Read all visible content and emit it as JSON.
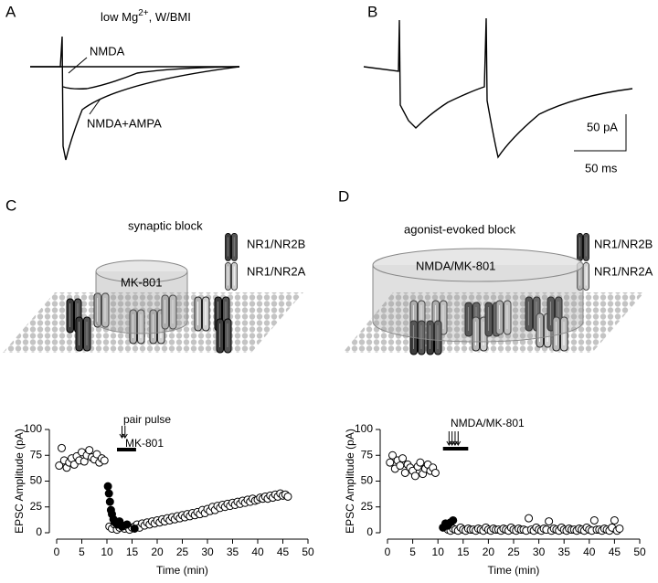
{
  "panel_a": {
    "label": "A",
    "title": "low Mg",
    "title_sup": "2+",
    "title_rest": ", W/BMI",
    "trace_1": "NMDA",
    "trace_2": "NMDA+AMPA"
  },
  "panel_b": {
    "label": "B",
    "scale_y": "50 pA",
    "scale_x": "50 ms"
  },
  "panel_c": {
    "label": "C",
    "title": "synaptic block",
    "legend_1": "NR1/NR2B",
    "legend_2": "NR1/NR2A",
    "cylinder": "MK-801"
  },
  "panel_d": {
    "label": "D",
    "title": "agonist-evoked block",
    "legend_1": "NR1/NR2B",
    "legend_2": "NR1/NR2A",
    "cylinder": "NMDA/MK-801"
  },
  "chart_data": [
    {
      "type": "scatter",
      "xlabel": "Time (min)",
      "ylabel": "EPSC Amplitude (pA)",
      "xlim": [
        0,
        50
      ],
      "ylim": [
        0,
        100
      ],
      "xticks": [
        0,
        5,
        10,
        15,
        20,
        25,
        30,
        35,
        40,
        45,
        50
      ],
      "yticks": [
        0,
        25,
        50,
        75,
        100
      ],
      "annotations": [
        "pair pulse",
        "MK-801"
      ],
      "series": [
        {
          "color": "#000000",
          "filled": false,
          "x": [
            0.5,
            1,
            1.5,
            2,
            2.5,
            3,
            3.5,
            4,
            4.5,
            5,
            5.5,
            6,
            6.5,
            7,
            7.5,
            8,
            8.5,
            9,
            9.5,
            10.5,
            11,
            11.5,
            12,
            12.5,
            13,
            13.5,
            14,
            14.5,
            15,
            15.5,
            16,
            16.5,
            17,
            17.5,
            18,
            18.5,
            19,
            19.5,
            20,
            20.5,
            21,
            21.5,
            22,
            22.5,
            23,
            23.5,
            24,
            24.5,
            25,
            25.5,
            26,
            26.5,
            27,
            27.5,
            28,
            28.5,
            29,
            29.5,
            30,
            30.5,
            31,
            31.5,
            32,
            32.5,
            33,
            33.5,
            34,
            34.5,
            35,
            35.5,
            36,
            36.5,
            37,
            37.5,
            38,
            38.5,
            39,
            39.5,
            40,
            40.5,
            41,
            41.5,
            42,
            42.5,
            43,
            43.5,
            44,
            44.5,
            45,
            45.5,
            46
          ],
          "values": [
            65,
            82,
            70,
            63,
            68,
            72,
            66,
            74,
            70,
            78,
            69,
            75,
            80,
            73,
            71,
            76,
            68,
            72,
            70,
            6,
            4,
            8,
            3,
            5,
            7,
            4,
            6,
            3,
            5,
            6,
            8,
            5,
            9,
            7,
            10,
            8,
            11,
            9,
            12,
            10,
            13,
            11,
            14,
            12,
            15,
            13,
            16,
            14,
            17,
            15,
            18,
            16,
            19,
            17,
            20,
            18,
            22,
            19,
            23,
            21,
            25,
            22,
            26,
            24,
            27,
            25,
            28,
            26,
            29,
            27,
            30,
            28,
            31,
            29,
            32,
            30,
            33,
            31,
            32,
            34,
            33,
            35,
            33,
            36,
            34,
            37,
            35,
            38,
            36,
            37,
            35
          ]
        },
        {
          "color": "#000000",
          "filled": true,
          "x": [
            10.2,
            10.4,
            10.6,
            10.8,
            11,
            11.3,
            11.6,
            12,
            12.5,
            13,
            14,
            15.5
          ],
          "values": [
            45,
            38,
            30,
            22,
            18,
            13,
            10,
            8,
            11,
            6,
            8,
            4
          ]
        }
      ]
    },
    {
      "type": "scatter",
      "xlabel": "Time (min)",
      "ylabel": "EPSC Amplitude (pA)",
      "xlim": [
        0,
        50
      ],
      "ylim": [
        0,
        100
      ],
      "xticks": [
        0,
        5,
        10,
        15,
        20,
        25,
        30,
        35,
        40,
        45,
        50
      ],
      "yticks": [
        0,
        25,
        50,
        75,
        100
      ],
      "annotations": [
        "NMDA/MK-801"
      ],
      "series": [
        {
          "color": "#000000",
          "filled": false,
          "x": [
            0.5,
            1,
            1.5,
            2,
            2.5,
            3,
            3.5,
            4,
            4.5,
            5,
            5.5,
            6,
            6.5,
            7,
            7.5,
            8,
            8.5,
            9,
            9.5,
            12,
            12.5,
            13,
            13.5,
            14,
            14.5,
            15,
            15.5,
            16,
            16.5,
            17,
            17.5,
            18,
            18.5,
            19,
            19.5,
            20,
            20.5,
            21,
            21.5,
            22,
            22.5,
            23,
            23.5,
            24,
            24.5,
            25,
            25.5,
            26,
            26.5,
            27,
            27.5,
            28,
            28.5,
            29,
            29.5,
            30,
            30.5,
            31,
            31.5,
            32,
            32.5,
            33,
            33.5,
            34,
            34.5,
            35,
            35.5,
            36,
            36.5,
            37,
            37.5,
            38,
            38.5,
            39,
            39.5,
            40,
            40.5,
            41,
            41.5,
            42,
            42.5,
            43,
            43.5,
            44,
            44.5,
            45,
            45.5,
            46
          ],
          "values": [
            68,
            75,
            62,
            70,
            65,
            72,
            58,
            66,
            63,
            60,
            55,
            64,
            68,
            57,
            62,
            66,
            60,
            63,
            58,
            3,
            2,
            4,
            3,
            2,
            5,
            3,
            2,
            4,
            3,
            3,
            2,
            4,
            3,
            2,
            5,
            3,
            2,
            4,
            3,
            3,
            2,
            4,
            3,
            2,
            5,
            3,
            2,
            4,
            3,
            3,
            2,
            14,
            3,
            2,
            5,
            3,
            2,
            4,
            3,
            11,
            2,
            4,
            3,
            2,
            5,
            3,
            2,
            4,
            3,
            3,
            2,
            4,
            3,
            2,
            5,
            3,
            2,
            12,
            3,
            3,
            2,
            4,
            3,
            2,
            5,
            12,
            2,
            4
          ]
        },
        {
          "color": "#000000",
          "filled": true,
          "x": [
            11,
            11.5,
            12,
            12.5,
            13
          ],
          "values": [
            5,
            9,
            7,
            10,
            12
          ]
        }
      ]
    }
  ]
}
